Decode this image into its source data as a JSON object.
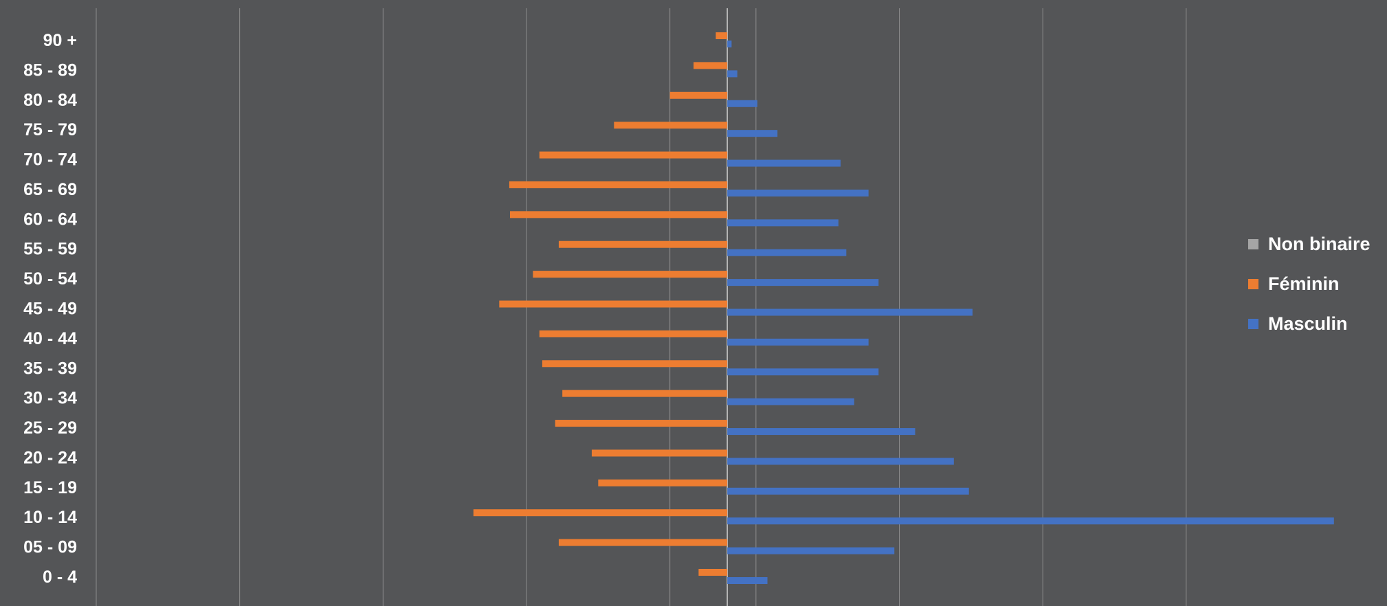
{
  "chart_data": {
    "type": "bar",
    "orientation": "horizontal",
    "subtype": "population-pyramid",
    "title": "",
    "xlabel": "",
    "ylabel": "",
    "categories": [
      "0 - 4",
      "05 - 09",
      "10 - 14",
      "15 - 19",
      "20 - 24",
      "25 - 29",
      "30 - 34",
      "35 - 39",
      "40 - 44",
      "45 - 49",
      "50 - 54",
      "55 - 59",
      "60 - 64",
      "65 - 69",
      "70 - 74",
      "75 - 79",
      "80 - 84",
      "85 - 89",
      "90 +"
    ],
    "series": [
      {
        "name": "Masculin",
        "color": "#4472c4",
        "values": [
          5.6,
          23.3,
          84.6,
          33.7,
          31.6,
          26.2,
          17.7,
          21.1,
          19.7,
          34.2,
          21.1,
          16.6,
          15.5,
          19.7,
          15.8,
          7.0,
          4.2,
          1.4,
          0.6
        ]
      },
      {
        "name": "Féminin",
        "color": "#ed7d31",
        "values": [
          -4.0,
          -23.5,
          -35.4,
          -18.0,
          -18.9,
          -24.0,
          -23.0,
          -25.8,
          -26.2,
          -31.8,
          -27.1,
          -23.5,
          -30.3,
          -30.4,
          -26.2,
          -15.8,
          -8.0,
          -4.7,
          -1.6
        ]
      },
      {
        "name": "Non binaire",
        "color": "#a5a5a5",
        "values": [
          0,
          0,
          0,
          0,
          0,
          0,
          0,
          0,
          0,
          0,
          0,
          0,
          0,
          0,
          0,
          0,
          0,
          0,
          0
        ]
      }
    ],
    "xlim": [
      -88,
      92
    ],
    "grid": true,
    "legend_position": "right",
    "legend_order": [
      "Non binaire",
      "Féminin",
      "Masculin"
    ]
  }
}
